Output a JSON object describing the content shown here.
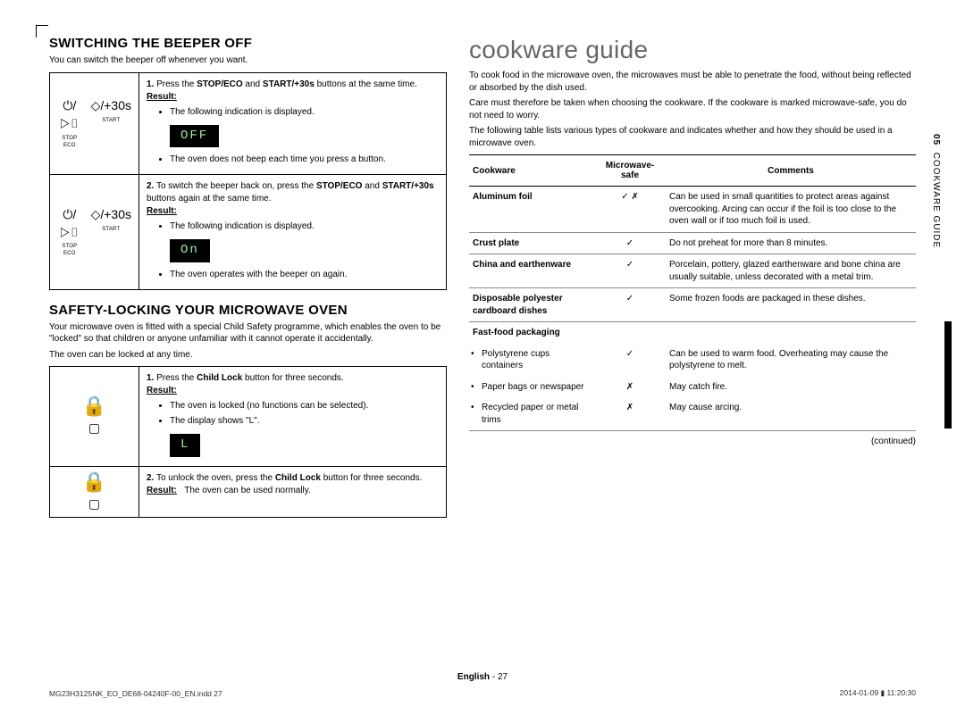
{
  "left": {
    "beeper": {
      "title": "SWITCHING THE BEEPER OFF",
      "intro": "You can switch the beeper off whenever you want.",
      "row1": {
        "icons": {
          "stop": {
            "glyph": "⏻/▷▯",
            "label": "STOP  ECO"
          },
          "start": {
            "glyph": "◇/+30s",
            "label": "START"
          }
        },
        "step_num": "1.",
        "text1": "Press the ",
        "bold1": "STOP/ECO",
        "text2": " and ",
        "bold2": "START/+30s",
        "text3": " buttons at the same time.",
        "result_label": "Result:",
        "bullet1": "The following indication is displayed.",
        "display": "OFF",
        "bullet2": "The oven does not beep each time you press a button."
      },
      "row2": {
        "icons": {
          "stop": {
            "glyph": "⏻/▷▯",
            "label": "STOP  ECO"
          },
          "start": {
            "glyph": "◇/+30s",
            "label": "START"
          }
        },
        "step_num": "2.",
        "text1": "To switch the beeper back on, press the ",
        "bold1": "STOP/ECO",
        "text2": " and ",
        "bold2": "START/+30s",
        "text3": " buttons again at the same time.",
        "result_label": "Result:",
        "bullet1": "The following indication is displayed.",
        "display": "On",
        "bullet2": "The oven operates with the beeper on again."
      }
    },
    "lock": {
      "title": "SAFETY-LOCKING YOUR MICROWAVE OVEN",
      "intro1": "Your microwave oven is fitted with a special Child Safety programme, which enables the oven to be \"locked\" so that children or anyone unfamiliar with it cannot operate it accidentally.",
      "intro2": "The oven can be locked at any time.",
      "row1": {
        "step_num": "1.",
        "text1": "Press the ",
        "bold1": "Child Lock",
        "text2": " button for three seconds.",
        "result_label": "Result:",
        "bullet1": "The oven is locked (no functions can be selected).",
        "bullet2": "The display shows \"L\".",
        "display": "L"
      },
      "row2": {
        "step_num": "2.",
        "text1": "To unlock the oven, press the ",
        "bold1": "Child Lock",
        "text2": " button for three seconds.",
        "result_label": "Result:",
        "result_text": "The oven can be used normally."
      }
    }
  },
  "right": {
    "title": "cookware guide",
    "intro1": "To cook food in the microwave oven, the microwaves must be able to penetrate the food, without being reflected or absorbed by the dish used.",
    "intro2": "Care must therefore be taken when choosing the cookware. If the cookware is marked microwave-safe, you do not need to worry.",
    "intro3": "The following table lists various types of cookware and indicates whether and how they should be used in a microwave oven.",
    "headers": {
      "c1": "Cookware",
      "c2": "Microwave-safe",
      "c3": "Comments"
    },
    "rows": [
      {
        "cw": "Aluminum foil",
        "ms": "✓ ✗",
        "cm": "Can be used in small quantities to protect areas against overcooking. Arcing can occur if the foil is too close to the oven wall or if too much foil is used.",
        "border": true
      },
      {
        "cw": "Crust plate",
        "ms": "✓",
        "cm": "Do not preheat for more than 8 minutes.",
        "border": true
      },
      {
        "cw": "China and earthenware",
        "ms": "✓",
        "cm": "Porcelain, pottery, glazed earthenware and bone china are usually suitable, unless decorated with a metal trim.",
        "border": true
      },
      {
        "cw": "Disposable polyester cardboard dishes",
        "ms": "✓",
        "cm": "Some frozen foods are packaged in these dishes.",
        "border": true
      },
      {
        "cw": "Fast-food packaging",
        "ms": "",
        "cm": "",
        "border": false,
        "bold": true
      },
      {
        "cw": "Polystyrene cups containers",
        "ms": "✓",
        "cm": "Can be used to warm food. Overheating may cause the polystyrene to melt.",
        "border": false,
        "sub": true
      },
      {
        "cw": "Paper bags or newspaper",
        "ms": "✗",
        "cm": "May catch fire.",
        "border": false,
        "sub": true
      },
      {
        "cw": "Recycled paper or metal trims",
        "ms": "✗",
        "cm": "May cause arcing.",
        "border": true,
        "sub": true
      }
    ],
    "continued": "(continued)",
    "side_tab_num": "05",
    "side_tab_text": "COOKWARE GUIDE"
  },
  "footer": {
    "center_lang": "English",
    "center_page": "27",
    "left": "MG23H3125NK_EO_DE68-04240F-00_EN.indd   27",
    "right": "2014-01-09   ▮ 11:20:30"
  }
}
